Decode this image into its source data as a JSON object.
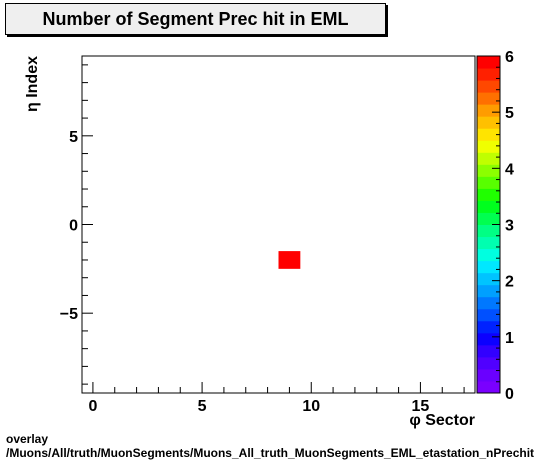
{
  "chart_data": {
    "type": "heatmap",
    "title": "Number of Segment Prec hit in EML",
    "xlabel": "φ Sector",
    "ylabel": "η Index",
    "xlim": [
      -0.5,
      17.5
    ],
    "ylim": [
      -9.5,
      9.5
    ],
    "x_ticks": [
      0,
      5,
      10,
      15
    ],
    "y_ticks": [
      -5,
      0,
      5
    ],
    "zlim": [
      0,
      6
    ],
    "z_ticks": [
      0,
      1,
      2,
      3,
      4,
      5,
      6
    ],
    "cells": [
      {
        "x": 9,
        "y": -2,
        "value": 6
      }
    ],
    "colorbar_colors": [
      "#7a00ff",
      "#6a00ff",
      "#5000ff",
      "#3200ff",
      "#0c00ff",
      "#0022ff",
      "#0050ff",
      "#0078ff",
      "#00a0ff",
      "#00c4ff",
      "#00e8ff",
      "#00ffe0",
      "#00ffb0",
      "#00ff84",
      "#00ff50",
      "#00ff1e",
      "#20ff00",
      "#58ff00",
      "#8cff00",
      "#c0ff00",
      "#f0ff00",
      "#ffe400",
      "#ffc000",
      "#ff9c00",
      "#ff7000",
      "#ff4800",
      "#ff2000",
      "#ff0000"
    ]
  },
  "footer": {
    "line1": "overlay",
    "line2": "/Muons/All/truth/MuonSegments/Muons_All_truth_MuonSegments_EML_etastation_nPrechit"
  }
}
